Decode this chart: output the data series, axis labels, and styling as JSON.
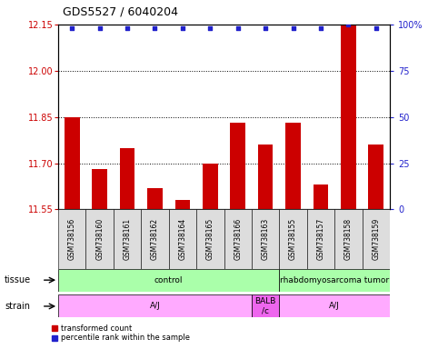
{
  "title": "GDS5527 / 6040204",
  "samples": [
    "GSM738156",
    "GSM738160",
    "GSM738161",
    "GSM738162",
    "GSM738164",
    "GSM738165",
    "GSM738166",
    "GSM738163",
    "GSM738155",
    "GSM738157",
    "GSM738158",
    "GSM738159"
  ],
  "bar_values": [
    11.85,
    11.68,
    11.75,
    11.62,
    11.58,
    11.7,
    11.83,
    11.76,
    11.83,
    11.63,
    12.15,
    11.76
  ],
  "percentile_y_vals": [
    98,
    98,
    98,
    98,
    98,
    98,
    98,
    98,
    98,
    98,
    100,
    98
  ],
  "ylim_left": [
    11.55,
    12.15
  ],
  "ylim_right": [
    0,
    100
  ],
  "yticks_left": [
    11.55,
    11.7,
    11.85,
    12.0,
    12.15
  ],
  "yticks_right": [
    0,
    25,
    50,
    75,
    100
  ],
  "hlines": [
    11.7,
    11.85,
    12.0,
    12.15
  ],
  "bar_color": "#cc0000",
  "dot_color": "#2222cc",
  "tissue_labels": [
    {
      "text": "control",
      "start": 0,
      "end": 7,
      "color": "#aaffaa"
    },
    {
      "text": "rhabdomyosarcoma tumor",
      "start": 8,
      "end": 11,
      "color": "#aaffaa"
    }
  ],
  "strain_labels": [
    {
      "text": "A/J",
      "start": 0,
      "end": 6,
      "color": "#ffaaff"
    },
    {
      "text": "BALB\n/c",
      "start": 7,
      "end": 7,
      "color": "#ee66ee"
    },
    {
      "text": "A/J",
      "start": 8,
      "end": 11,
      "color": "#ffaaff"
    }
  ],
  "row_label_tissue": "tissue",
  "row_label_strain": "strain",
  "legend_items": [
    {
      "label": "transformed count",
      "color": "#cc0000"
    },
    {
      "label": "percentile rank within the sample",
      "color": "#2222cc"
    }
  ],
  "background_color": "#ffffff",
  "axis_label_color_left": "#cc0000",
  "axis_label_color_right": "#2222cc",
  "sample_box_color": "#dddddd",
  "tick_fontsize": 7,
  "title_fontsize": 9,
  "label_fontsize": 6.5,
  "sample_fontsize": 5.5
}
